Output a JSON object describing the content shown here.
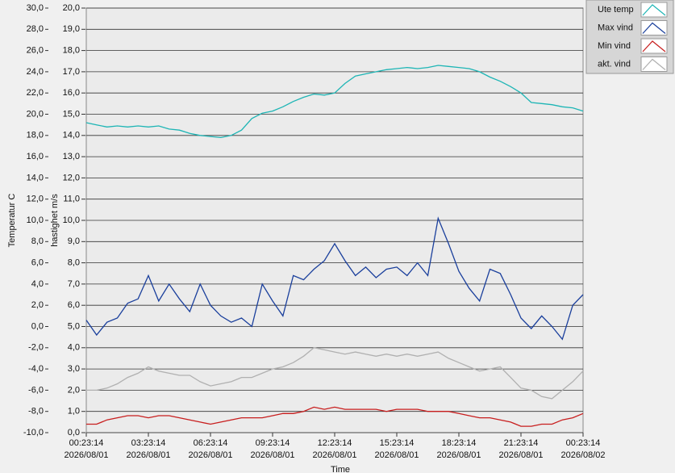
{
  "chart_data": {
    "type": "line",
    "xlabel": "Time",
    "ylabel": "Temperatur C",
    "y2label": "hastighet m/s",
    "grid": true,
    "legend": "top-right",
    "x": [
      "2026-08-01T00:23:14",
      "2026-08-01T00:53:14",
      "2026-08-01T01:23:14",
      "2026-08-01T01:53:14",
      "2026-08-01T02:23:14",
      "2026-08-01T02:53:14",
      "2026-08-01T03:23:14",
      "2026-08-01T03:53:14",
      "2026-08-01T04:23:14",
      "2026-08-01T04:53:14",
      "2026-08-01T05:23:14",
      "2026-08-01T05:53:14",
      "2026-08-01T06:23:14",
      "2026-08-01T06:53:14",
      "2026-08-01T07:23:14",
      "2026-08-01T07:53:14",
      "2026-08-01T08:23:14",
      "2026-08-01T08:53:14",
      "2026-08-01T09:23:14",
      "2026-08-01T09:53:14",
      "2026-08-01T10:23:14",
      "2026-08-01T10:53:14",
      "2026-08-01T11:23:14",
      "2026-08-01T11:53:14",
      "2026-08-01T12:23:14",
      "2026-08-01T12:53:14",
      "2026-08-01T13:23:14",
      "2026-08-01T13:53:14",
      "2026-08-01T14:23:14",
      "2026-08-01T14:53:14",
      "2026-08-01T15:23:14",
      "2026-08-01T15:53:14",
      "2026-08-01T16:23:14",
      "2026-08-01T16:53:14",
      "2026-08-01T17:23:14",
      "2026-08-01T17:53:14",
      "2026-08-01T18:23:14",
      "2026-08-01T18:53:14",
      "2026-08-01T19:23:14",
      "2026-08-01T19:53:14",
      "2026-08-01T20:23:14",
      "2026-08-01T20:53:14",
      "2026-08-01T21:23:14",
      "2026-08-01T21:53:14",
      "2026-08-01T22:23:14",
      "2026-08-01T22:53:14",
      "2026-08-01T23:23:14",
      "2026-08-01T23:53:14",
      "2026-08-02T00:23:14"
    ],
    "xlim": [
      "2026-08-01T00:23:14",
      "2026-08-02T00:23:14"
    ],
    "xticks": [
      {
        "value": "2026-08-01T00:23:14",
        "label": "00:23:14\n2026/08/01"
      },
      {
        "value": "2026-08-01T03:23:14",
        "label": "03:23:14\n2026/08/01"
      },
      {
        "value": "2026-08-01T06:23:14",
        "label": "06:23:14\n2026/08/01"
      },
      {
        "value": "2026-08-01T09:23:14",
        "label": "09:23:14\n2026/08/01"
      },
      {
        "value": "2026-08-01T12:23:14",
        "label": "12:23:14\n2026/08/01"
      },
      {
        "value": "2026-08-01T15:23:14",
        "label": "15:23:14\n2026/08/01"
      },
      {
        "value": "2026-08-01T18:23:14",
        "label": "18:23:14\n2026/08/01"
      },
      {
        "value": "2026-08-01T21:23:14",
        "label": "21:23:14\n2026/08/01"
      },
      {
        "value": "2026-08-02T00:23:14",
        "label": "00:23:14\n2026/08/02"
      }
    ],
    "ylim": [
      -10,
      30
    ],
    "yticks": [
      {
        "value": -10,
        "label": "-10,0"
      },
      {
        "value": -8,
        "label": "-8,0"
      },
      {
        "value": -6,
        "label": "-6,0"
      },
      {
        "value": -4,
        "label": "-4,0"
      },
      {
        "value": -2,
        "label": "-2,0"
      },
      {
        "value": 0,
        "label": "0,0"
      },
      {
        "value": 2,
        "label": "2,0"
      },
      {
        "value": 4,
        "label": "4,0"
      },
      {
        "value": 6,
        "label": "6,0"
      },
      {
        "value": 8,
        "label": "8,0"
      },
      {
        "value": 10,
        "label": "10,0"
      },
      {
        "value": 12,
        "label": "12,0"
      },
      {
        "value": 14,
        "label": "14,0"
      },
      {
        "value": 16,
        "label": "16,0"
      },
      {
        "value": 18,
        "label": "18,0"
      },
      {
        "value": 20,
        "label": "20,0"
      },
      {
        "value": 22,
        "label": "22,0"
      },
      {
        "value": 24,
        "label": "24,0"
      },
      {
        "value": 26,
        "label": "26,0"
      },
      {
        "value": 28,
        "label": "28,0"
      },
      {
        "value": 30,
        "label": "30,0"
      }
    ],
    "y2lim": [
      0,
      20
    ],
    "y2ticks": [
      {
        "value": 0,
        "label": "0,0"
      },
      {
        "value": 1,
        "label": "1,0"
      },
      {
        "value": 2,
        "label": "2,0"
      },
      {
        "value": 3,
        "label": "3,0"
      },
      {
        "value": 4,
        "label": "4,0"
      },
      {
        "value": 5,
        "label": "5,0"
      },
      {
        "value": 6,
        "label": "6,0"
      },
      {
        "value": 7,
        "label": "7,0"
      },
      {
        "value": 8,
        "label": "8,0"
      },
      {
        "value": 9,
        "label": "9,0"
      },
      {
        "value": 10,
        "label": "10,0"
      },
      {
        "value": 11,
        "label": "11,0"
      },
      {
        "value": 12,
        "label": "12,0"
      },
      {
        "value": 13,
        "label": "13,0"
      },
      {
        "value": 14,
        "label": "14,0"
      },
      {
        "value": 15,
        "label": "15,0"
      },
      {
        "value": 16,
        "label": "16,0"
      },
      {
        "value": 17,
        "label": "17,0"
      },
      {
        "value": 18,
        "label": "18,0"
      },
      {
        "value": 19,
        "label": "19,0"
      },
      {
        "value": 20,
        "label": "20,0"
      }
    ],
    "series": [
      {
        "name": "Ute temp",
        "color": "#1db5b5",
        "axis": "y",
        "values": [
          19.2,
          19.0,
          18.8,
          18.9,
          18.8,
          18.9,
          18.8,
          18.9,
          18.6,
          18.5,
          18.2,
          18.0,
          17.9,
          17.8,
          18.0,
          18.5,
          19.6,
          20.1,
          20.3,
          20.7,
          21.2,
          21.6,
          21.9,
          21.8,
          22.0,
          22.9,
          23.6,
          23.8,
          24.0,
          24.2,
          24.3,
          24.4,
          24.3,
          24.4,
          24.6,
          24.5,
          24.4,
          24.3,
          24.0,
          23.5,
          23.1,
          22.6,
          22.0,
          21.1,
          21.0,
          20.9,
          20.7,
          20.6,
          20.3
        ]
      },
      {
        "name": "Max vind",
        "color": "#1a3f9c",
        "axis": "y2",
        "values": [
          5.3,
          4.6,
          5.2,
          5.4,
          6.1,
          6.3,
          7.4,
          6.2,
          7.0,
          6.3,
          5.7,
          7.0,
          6.0,
          5.5,
          5.2,
          5.4,
          5.0,
          7.0,
          6.2,
          5.5,
          7.4,
          7.2,
          7.7,
          8.1,
          8.9,
          8.1,
          7.4,
          7.8,
          7.3,
          7.7,
          7.8,
          7.4,
          8.0,
          7.4,
          10.1,
          8.9,
          7.6,
          6.8,
          6.2,
          7.7,
          7.5,
          6.5,
          5.4,
          4.9,
          5.5,
          5.0,
          4.4,
          6.0,
          6.5
        ]
      },
      {
        "name": "Min vind",
        "color": "#c81e1e",
        "axis": "y2",
        "values": [
          0.4,
          0.4,
          0.6,
          0.7,
          0.8,
          0.8,
          0.7,
          0.8,
          0.8,
          0.7,
          0.6,
          0.5,
          0.4,
          0.5,
          0.6,
          0.7,
          0.7,
          0.7,
          0.8,
          0.9,
          0.9,
          1.0,
          1.2,
          1.1,
          1.2,
          1.1,
          1.1,
          1.1,
          1.1,
          1.0,
          1.1,
          1.1,
          1.1,
          1.0,
          1.0,
          1.0,
          0.9,
          0.8,
          0.7,
          0.7,
          0.6,
          0.5,
          0.3,
          0.3,
          0.4,
          0.4,
          0.6,
          0.7,
          0.9
        ]
      },
      {
        "name": "akt. vind",
        "color": "#b0b0b0",
        "axis": "y2",
        "values": [
          2.0,
          2.0,
          2.1,
          2.3,
          2.6,
          2.8,
          3.1,
          2.9,
          2.8,
          2.7,
          2.7,
          2.4,
          2.2,
          2.3,
          2.4,
          2.6,
          2.6,
          2.8,
          3.0,
          3.1,
          3.3,
          3.6,
          4.0,
          3.9,
          3.8,
          3.7,
          3.8,
          3.7,
          3.6,
          3.7,
          3.6,
          3.7,
          3.6,
          3.7,
          3.8,
          3.5,
          3.3,
          3.1,
          2.9,
          3.0,
          3.1,
          2.6,
          2.1,
          2.0,
          1.7,
          1.6,
          2.0,
          2.4,
          2.9
        ]
      }
    ]
  }
}
